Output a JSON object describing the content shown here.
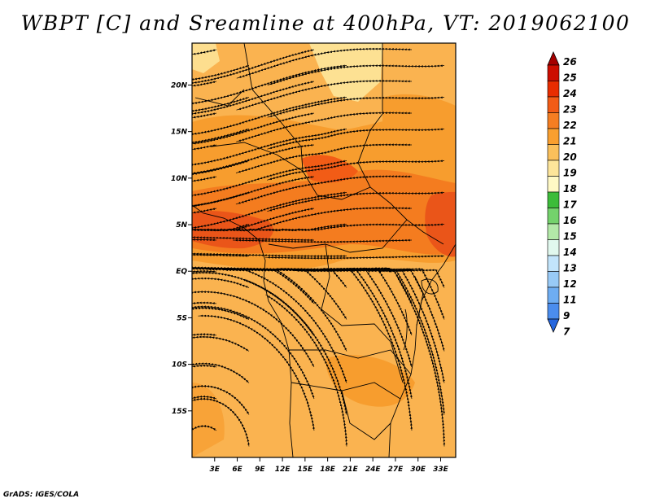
{
  "title": "WBPT [C] and Sreamline at 400hPa, VT: 2019062100",
  "footer": "GrADS: IGES/COLA",
  "map": {
    "lon_range": [
      0,
      35
    ],
    "lat_range": [
      -20,
      24.5
    ],
    "lon_ticks": [
      "3E",
      "6E",
      "9E",
      "12E",
      "15E",
      "18E",
      "21E",
      "24E",
      "27E",
      "30E",
      "33E"
    ],
    "lat_ticks": [
      "20N",
      "15N",
      "10N",
      "5N",
      "EQ",
      "5S",
      "10S",
      "15S"
    ],
    "field_colors": {
      "c20_21": "#fab350",
      "c21_22": "#f79d2e",
      "c22_23": "#f47c1f",
      "c23_24": "#ea5519",
      "c19_20": "#fde59a"
    }
  },
  "colorbar": {
    "labels": [
      "26",
      "25",
      "24",
      "23",
      "22",
      "21",
      "20",
      "19",
      "18",
      "17",
      "16",
      "15",
      "14",
      "13",
      "12",
      "11",
      "9",
      "7"
    ],
    "colors": [
      "#a50000",
      "#cc0d00",
      "#e82d00",
      "#f25c16",
      "#f57e22",
      "#f99f2f",
      "#fac05b",
      "#fde59a",
      "#fff9c5",
      "#3dbc3a",
      "#74d26c",
      "#b3e9a8",
      "#e1f8ee",
      "#c2e4fb",
      "#98caf7",
      "#6eadf2",
      "#4b8ded",
      "#2566de"
    ]
  }
}
